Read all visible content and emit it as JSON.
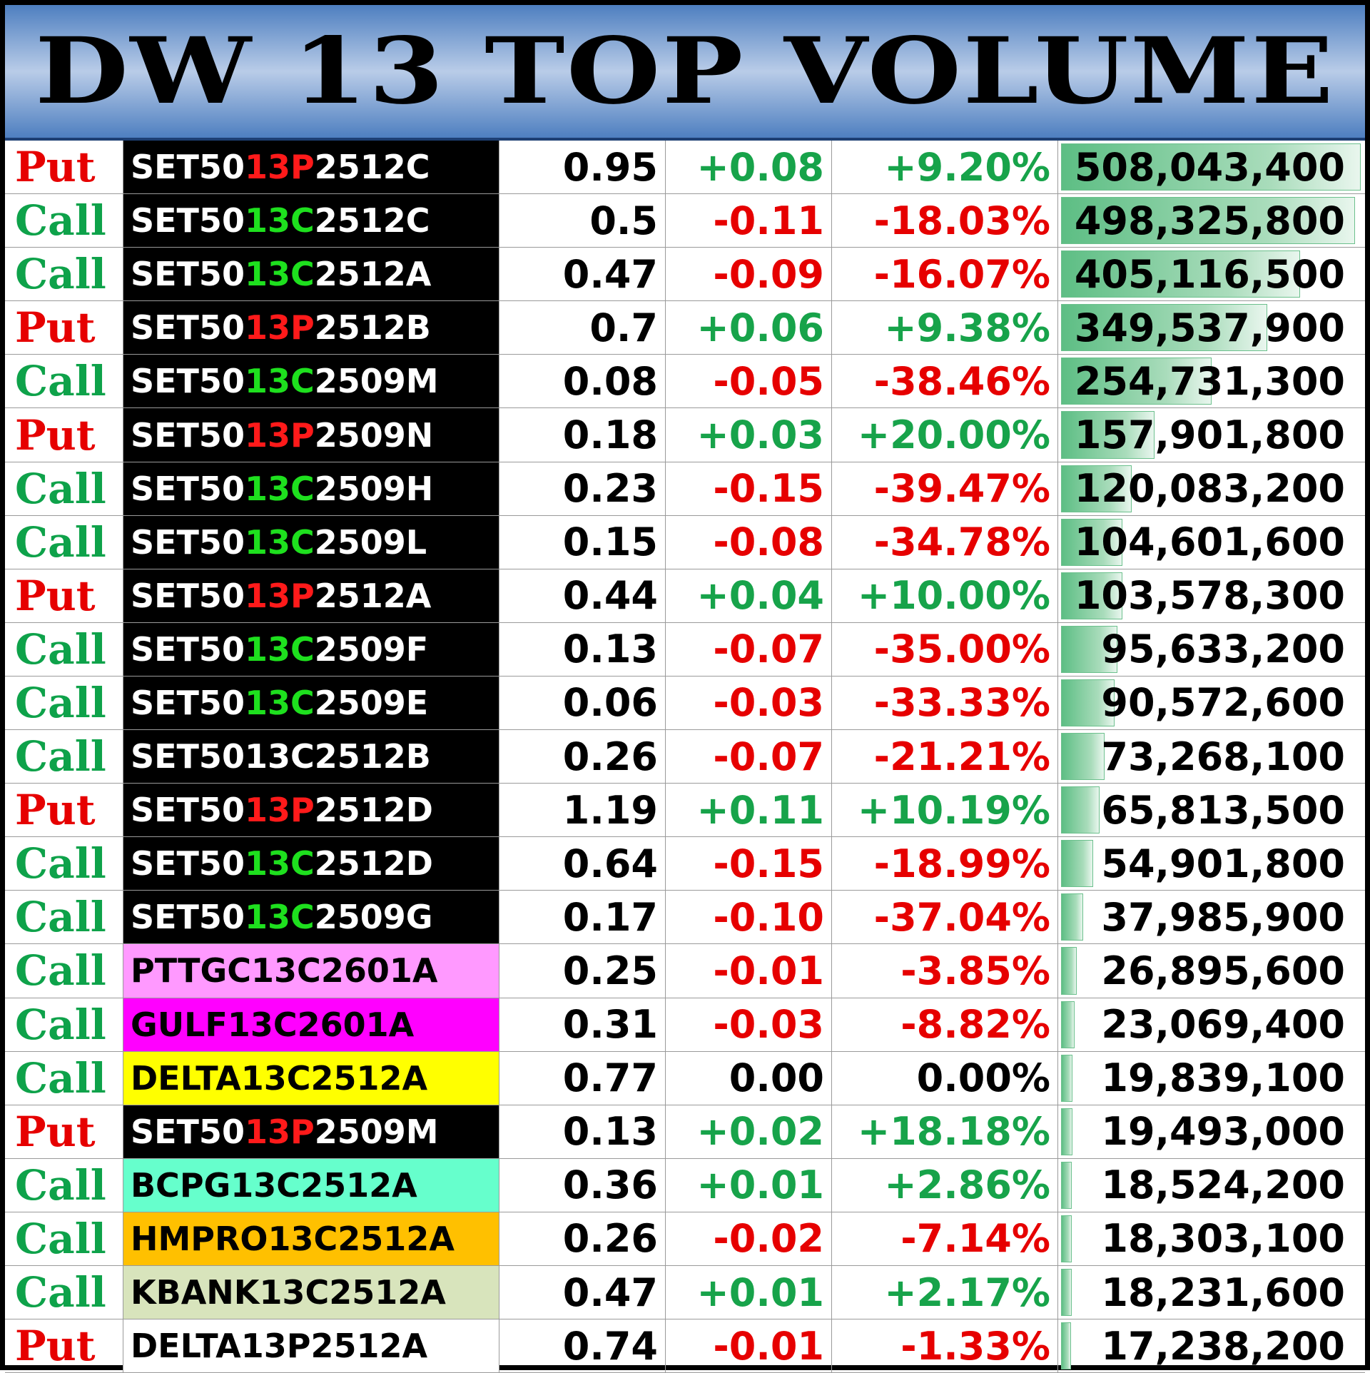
{
  "title": "DW 13 TOP VOLUME",
  "colors": {
    "put": "#e60000",
    "call": "#0ea24a",
    "positive": "#17a34a",
    "negative": "#e60000",
    "neutral": "#000000"
  },
  "rows": [
    {
      "type": "Put",
      "name_parts": [
        "SET50",
        "13P",
        "2512C"
      ],
      "highlight": "red",
      "name_bg": "#000000",
      "name_color": "#ffffff",
      "price": "0.95",
      "change": "+0.08",
      "percent": "+9.20%",
      "direction": "up",
      "volume": "508,043,400",
      "volume_value": 508043400
    },
    {
      "type": "Call",
      "name_parts": [
        "SET50",
        "13C",
        "2512C"
      ],
      "highlight": "green",
      "name_bg": "#000000",
      "name_color": "#ffffff",
      "price": "0.5",
      "change": "-0.11",
      "percent": "-18.03%",
      "direction": "down",
      "volume": "498,325,800",
      "volume_value": 498325800
    },
    {
      "type": "Call",
      "name_parts": [
        "SET50",
        "13C",
        "2512A"
      ],
      "highlight": "green",
      "name_bg": "#000000",
      "name_color": "#ffffff",
      "price": "0.47",
      "change": "-0.09",
      "percent": "-16.07%",
      "direction": "down",
      "volume": "405,116,500",
      "volume_value": 405116500
    },
    {
      "type": "Put",
      "name_parts": [
        "SET50",
        "13P",
        "2512B"
      ],
      "highlight": "red",
      "name_bg": "#000000",
      "name_color": "#ffffff",
      "price": "0.7",
      "change": "+0.06",
      "percent": "+9.38%",
      "direction": "up",
      "volume": "349,537,900",
      "volume_value": 349537900
    },
    {
      "type": "Call",
      "name_parts": [
        "SET50",
        "13C",
        "2509M"
      ],
      "highlight": "green",
      "name_bg": "#000000",
      "name_color": "#ffffff",
      "price": "0.08",
      "change": "-0.05",
      "percent": "-38.46%",
      "direction": "down",
      "volume": "254,731,300",
      "volume_value": 254731300
    },
    {
      "type": "Put",
      "name_parts": [
        "SET50",
        "13P",
        "2509N"
      ],
      "highlight": "red",
      "name_bg": "#000000",
      "name_color": "#ffffff",
      "price": "0.18",
      "change": "+0.03",
      "percent": "+20.00%",
      "direction": "up",
      "volume": "157,901,800",
      "volume_value": 157901800
    },
    {
      "type": "Call",
      "name_parts": [
        "SET50",
        "13C",
        "2509H"
      ],
      "highlight": "green",
      "name_bg": "#000000",
      "name_color": "#ffffff",
      "price": "0.23",
      "change": "-0.15",
      "percent": "-39.47%",
      "direction": "down",
      "volume": "120,083,200",
      "volume_value": 120083200
    },
    {
      "type": "Call",
      "name_parts": [
        "SET50",
        "13C",
        "2509L"
      ],
      "highlight": "green",
      "name_bg": "#000000",
      "name_color": "#ffffff",
      "price": "0.15",
      "change": "-0.08",
      "percent": "-34.78%",
      "direction": "down",
      "volume": "104,601,600",
      "volume_value": 104601600
    },
    {
      "type": "Put",
      "name_parts": [
        "SET50",
        "13P",
        "2512A"
      ],
      "highlight": "red",
      "name_bg": "#000000",
      "name_color": "#ffffff",
      "price": "0.44",
      "change": "+0.04",
      "percent": "+10.00%",
      "direction": "up",
      "volume": "103,578,300",
      "volume_value": 103578300
    },
    {
      "type": "Call",
      "name_parts": [
        "SET50",
        "13C",
        "2509F"
      ],
      "highlight": "green",
      "name_bg": "#000000",
      "name_color": "#ffffff",
      "price": "0.13",
      "change": "-0.07",
      "percent": "-35.00%",
      "direction": "down",
      "volume": "95,633,200",
      "volume_value": 95633200
    },
    {
      "type": "Call",
      "name_parts": [
        "SET50",
        "13C",
        "2509E"
      ],
      "highlight": "green",
      "name_bg": "#000000",
      "name_color": "#ffffff",
      "price": "0.06",
      "change": "-0.03",
      "percent": "-33.33%",
      "direction": "down",
      "volume": "90,572,600",
      "volume_value": 90572600
    },
    {
      "type": "Call",
      "name_parts": [
        "SET5013C2512B",
        "",
        ""
      ],
      "highlight": "none",
      "name_bg": "#000000",
      "name_color": "#ffffff",
      "price": "0.26",
      "change": "-0.07",
      "percent": "-21.21%",
      "direction": "down",
      "volume": "73,268,100",
      "volume_value": 73268100
    },
    {
      "type": "Put",
      "name_parts": [
        "SET50",
        "13P",
        "2512D"
      ],
      "highlight": "red",
      "name_bg": "#000000",
      "name_color": "#ffffff",
      "price": "1.19",
      "change": "+0.11",
      "percent": "+10.19%",
      "direction": "up",
      "volume": "65,813,500",
      "volume_value": 65813500
    },
    {
      "type": "Call",
      "name_parts": [
        "SET50",
        "13C",
        "2512D"
      ],
      "highlight": "green",
      "name_bg": "#000000",
      "name_color": "#ffffff",
      "price": "0.64",
      "change": "-0.15",
      "percent": "-18.99%",
      "direction": "down",
      "volume": "54,901,800",
      "volume_value": 54901800
    },
    {
      "type": "Call",
      "name_parts": [
        "SET50",
        "13C",
        "2509G"
      ],
      "highlight": "green",
      "name_bg": "#000000",
      "name_color": "#ffffff",
      "price": "0.17",
      "change": "-0.10",
      "percent": "-37.04%",
      "direction": "down",
      "volume": "37,985,900",
      "volume_value": 37985900
    },
    {
      "type": "Call",
      "name_parts": [
        "PTTGC13C2601A",
        "",
        ""
      ],
      "highlight": "none",
      "name_bg": "#ff99ff",
      "name_color": "#000000",
      "price": "0.25",
      "change": "-0.01",
      "percent": "-3.85%",
      "direction": "down",
      "volume": "26,895,600",
      "volume_value": 26895600
    },
    {
      "type": "Call",
      "name_parts": [
        "GULF13C2601A",
        "",
        ""
      ],
      "highlight": "none",
      "name_bg": "#ff00ff",
      "name_color": "#000000",
      "price": "0.31",
      "change": "-0.03",
      "percent": "-8.82%",
      "direction": "down",
      "volume": "23,069,400",
      "volume_value": 23069400
    },
    {
      "type": "Call",
      "name_parts": [
        "DELTA13C2512A",
        "",
        ""
      ],
      "highlight": "none",
      "name_bg": "#ffff00",
      "name_color": "#000000",
      "price": "0.77",
      "change": "0.00",
      "percent": "0.00%",
      "direction": "flat",
      "volume": "19,839,100",
      "volume_value": 19839100
    },
    {
      "type": "Put",
      "name_parts": [
        "SET50",
        "13P",
        "2509M"
      ],
      "highlight": "red",
      "name_bg": "#000000",
      "name_color": "#ffffff",
      "price": "0.13",
      "change": "+0.02",
      "percent": "+18.18%",
      "direction": "up",
      "volume": "19,493,000",
      "volume_value": 19493000
    },
    {
      "type": "Call",
      "name_parts": [
        "BCPG13C2512A",
        "",
        ""
      ],
      "highlight": "none",
      "name_bg": "#66ffcc",
      "name_color": "#000000",
      "price": "0.36",
      "change": "+0.01",
      "percent": "+2.86%",
      "direction": "up",
      "volume": "18,524,200",
      "volume_value": 18524200
    },
    {
      "type": "Call",
      "name_parts": [
        "HMPRO13C2512A",
        "",
        ""
      ],
      "highlight": "none",
      "name_bg": "#ffc000",
      "name_color": "#000000",
      "price": "0.26",
      "change": "-0.02",
      "percent": "-7.14%",
      "direction": "down",
      "volume": "18,303,100",
      "volume_value": 18303100
    },
    {
      "type": "Call",
      "name_parts": [
        "KBANK13C2512A",
        "",
        ""
      ],
      "highlight": "none",
      "name_bg": "#d8e4bc",
      "name_color": "#000000",
      "price": "0.47",
      "change": "+0.01",
      "percent": "+2.17%",
      "direction": "up",
      "volume": "18,231,600",
      "volume_value": 18231600
    },
    {
      "type": "Put",
      "name_parts": [
        "DELTA13P2512A",
        "",
        ""
      ],
      "highlight": "none",
      "name_bg": "#ffffff",
      "name_color": "#000000",
      "price": "0.74",
      "change": "-0.01",
      "percent": "-1.33%",
      "direction": "down",
      "volume": "17,238,200",
      "volume_value": 17238200
    }
  ]
}
